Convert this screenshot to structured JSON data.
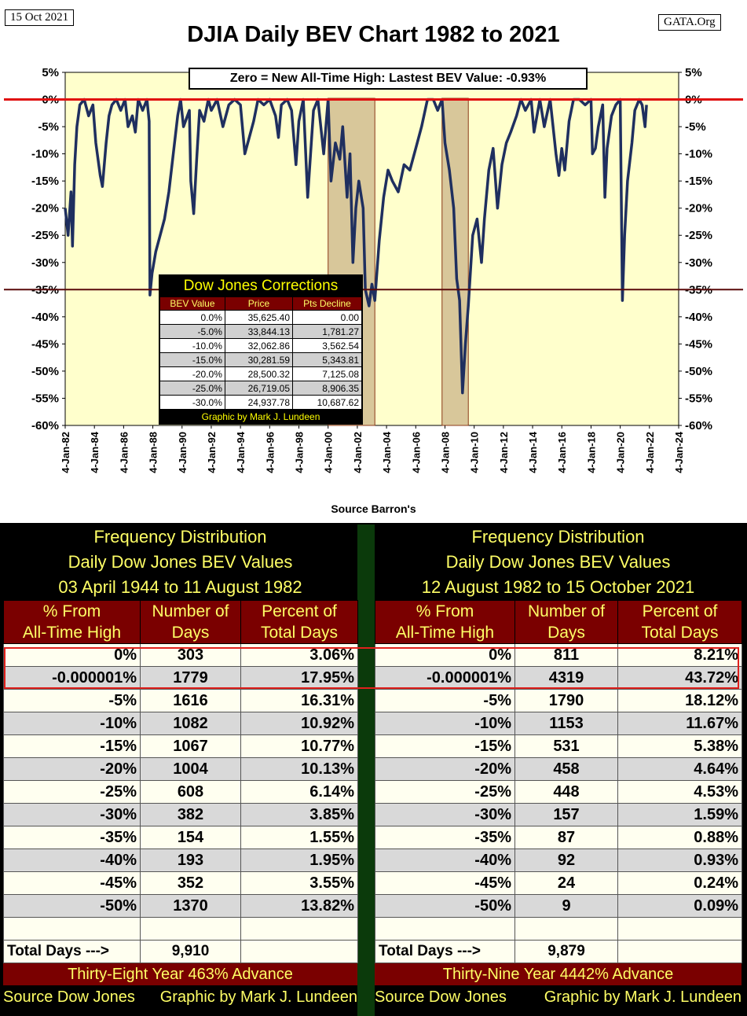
{
  "header": {
    "date_stamp": "15 Oct 2021",
    "site_stamp": "GATA.Org",
    "title": "DJIA Daily BEV Chart 1982 to 2021",
    "banner": "Zero = New All-Time High: Lastest BEV Value: -0.93%",
    "source": "Source Barron's"
  },
  "chart_data": {
    "type": "area",
    "title": "DJIA Daily BEV Chart 1982 to 2021",
    "xlabel": "",
    "ylabel": "",
    "ylim": [
      -60,
      5
    ],
    "y_ticks": [
      "5%",
      "0%",
      "-5%",
      "-10%",
      "-15%",
      "-20%",
      "-25%",
      "-30%",
      "-35%",
      "-40%",
      "-45%",
      "-50%",
      "-55%",
      "-60%"
    ],
    "x_ticks": [
      "4-Jan-82",
      "4-Jan-84",
      "4-Jan-86",
      "4-Jan-88",
      "4-Jan-90",
      "4-Jan-92",
      "4-Jan-94",
      "4-Jan-96",
      "4-Jan-98",
      "4-Jan-00",
      "4-Jan-02",
      "4-Jan-04",
      "4-Jan-06",
      "4-Jan-08",
      "4-Jan-10",
      "4-Jan-12",
      "4-Jan-14",
      "4-Jan-16",
      "4-Jan-18",
      "4-Jan-20",
      "4-Jan-22",
      "4-Jan-24"
    ],
    "x_range": [
      1982.0,
      2024.0
    ],
    "reference_lines": [
      {
        "y": 0,
        "color": "#e01010"
      },
      {
        "y": -35,
        "color": "#5a0a0a"
      }
    ],
    "shaded_periods": [
      [
        2000.0,
        2003.2
      ],
      [
        2007.8,
        2009.6
      ]
    ],
    "colors": {
      "plot_bg": "#ffffcc",
      "series": "#1f2f5f",
      "shade": "#d8c79a"
    },
    "series": [
      {
        "points": [
          [
            1982.0,
            -20
          ],
          [
            1982.2,
            -25
          ],
          [
            1982.4,
            -17
          ],
          [
            1982.5,
            -27
          ],
          [
            1982.65,
            -12
          ],
          [
            1982.8,
            -5
          ],
          [
            1983.0,
            -1
          ],
          [
            1983.3,
            0
          ],
          [
            1983.6,
            -3
          ],
          [
            1983.9,
            -1
          ],
          [
            1984.1,
            -8
          ],
          [
            1984.4,
            -14
          ],
          [
            1984.55,
            -16
          ],
          [
            1984.8,
            -8
          ],
          [
            1985.0,
            -3
          ],
          [
            1985.2,
            -1
          ],
          [
            1985.5,
            0
          ],
          [
            1985.8,
            -2
          ],
          [
            1986.1,
            0
          ],
          [
            1986.3,
            -5
          ],
          [
            1986.6,
            -3
          ],
          [
            1986.8,
            -6
          ],
          [
            1987.0,
            0
          ],
          [
            1987.3,
            -2
          ],
          [
            1987.6,
            0
          ],
          [
            1987.75,
            -4
          ],
          [
            1987.8,
            -36
          ],
          [
            1987.95,
            -32
          ],
          [
            1988.2,
            -28
          ],
          [
            1988.5,
            -25
          ],
          [
            1988.8,
            -22
          ],
          [
            1989.1,
            -17
          ],
          [
            1989.4,
            -10
          ],
          [
            1989.7,
            -3
          ],
          [
            1989.9,
            0
          ],
          [
            1990.1,
            -5
          ],
          [
            1990.5,
            -2
          ],
          [
            1990.6,
            -15
          ],
          [
            1990.8,
            -21
          ],
          [
            1991.0,
            -11
          ],
          [
            1991.2,
            -2
          ],
          [
            1991.5,
            -4
          ],
          [
            1991.8,
            0
          ],
          [
            1992.0,
            -2
          ],
          [
            1992.4,
            0
          ],
          [
            1992.8,
            -5
          ],
          [
            1993.2,
            -1
          ],
          [
            1993.6,
            0
          ],
          [
            1994.0,
            -1
          ],
          [
            1994.3,
            -10
          ],
          [
            1994.6,
            -7
          ],
          [
            1994.9,
            -4
          ],
          [
            1995.2,
            0
          ],
          [
            1995.6,
            -1
          ],
          [
            1996.0,
            0
          ],
          [
            1996.4,
            -3
          ],
          [
            1996.6,
            -7
          ],
          [
            1996.8,
            -1
          ],
          [
            1997.2,
            0
          ],
          [
            1997.5,
            -2
          ],
          [
            1997.8,
            -12
          ],
          [
            1998.0,
            -4
          ],
          [
            1998.3,
            0
          ],
          [
            1998.6,
            -18
          ],
          [
            1998.8,
            -10
          ],
          [
            1999.0,
            -2
          ],
          [
            1999.3,
            0
          ],
          [
            1999.7,
            -10
          ],
          [
            2000.0,
            0
          ],
          [
            2000.2,
            -15
          ],
          [
            2000.5,
            -8
          ],
          [
            2000.8,
            -11
          ],
          [
            2001.0,
            -5
          ],
          [
            2001.3,
            -18
          ],
          [
            2001.5,
            -10
          ],
          [
            2001.7,
            -30
          ],
          [
            2001.9,
            -20
          ],
          [
            2002.1,
            -15
          ],
          [
            2002.4,
            -20
          ],
          [
            2002.55,
            -35
          ],
          [
            2002.8,
            -38
          ],
          [
            2003.0,
            -34
          ],
          [
            2003.2,
            -37
          ],
          [
            2003.5,
            -26
          ],
          [
            2003.8,
            -18
          ],
          [
            2004.1,
            -13
          ],
          [
            2004.4,
            -15
          ],
          [
            2004.8,
            -17
          ],
          [
            2005.2,
            -12
          ],
          [
            2005.6,
            -13
          ],
          [
            2006.0,
            -9
          ],
          [
            2006.4,
            -5
          ],
          [
            2006.8,
            0
          ],
          [
            2007.2,
            0
          ],
          [
            2007.5,
            -2
          ],
          [
            2007.8,
            0
          ],
          [
            2008.0,
            -8
          ],
          [
            2008.3,
            -13
          ],
          [
            2008.6,
            -20
          ],
          [
            2008.8,
            -33
          ],
          [
            2009.0,
            -37
          ],
          [
            2009.2,
            -54
          ],
          [
            2009.4,
            -45
          ],
          [
            2009.6,
            -38
          ],
          [
            2009.9,
            -25
          ],
          [
            2010.2,
            -22
          ],
          [
            2010.5,
            -30
          ],
          [
            2010.7,
            -22
          ],
          [
            2011.0,
            -13
          ],
          [
            2011.3,
            -9
          ],
          [
            2011.6,
            -20
          ],
          [
            2011.9,
            -12
          ],
          [
            2012.2,
            -8
          ],
          [
            2012.5,
            -6
          ],
          [
            2012.9,
            -3
          ],
          [
            2013.2,
            0
          ],
          [
            2013.5,
            -2
          ],
          [
            2013.9,
            0
          ],
          [
            2014.1,
            -6
          ],
          [
            2014.5,
            0
          ],
          [
            2014.8,
            -5
          ],
          [
            2015.2,
            0
          ],
          [
            2015.6,
            -10
          ],
          [
            2015.8,
            -14
          ],
          [
            2016.0,
            -9
          ],
          [
            2016.2,
            -13
          ],
          [
            2016.5,
            -4
          ],
          [
            2016.8,
            0
          ],
          [
            2017.2,
            0
          ],
          [
            2017.6,
            -1
          ],
          [
            2018.0,
            0
          ],
          [
            2018.1,
            -10
          ],
          [
            2018.3,
            -9
          ],
          [
            2018.5,
            -5
          ],
          [
            2018.8,
            -1
          ],
          [
            2018.95,
            -18
          ],
          [
            2019.1,
            -9
          ],
          [
            2019.4,
            -3
          ],
          [
            2019.7,
            -1
          ],
          [
            2020.0,
            0
          ],
          [
            2020.15,
            -37
          ],
          [
            2020.3,
            -25
          ],
          [
            2020.5,
            -15
          ],
          [
            2020.8,
            -8
          ],
          [
            2021.0,
            -2
          ],
          [
            2021.3,
            0
          ],
          [
            2021.5,
            -1
          ],
          [
            2021.7,
            -5
          ],
          [
            2021.8,
            -1
          ]
        ]
      }
    ]
  },
  "corrections": {
    "title": "Dow Jones Corrections",
    "headers": [
      "BEV Value",
      "Price",
      "Pts Decline"
    ],
    "rows": [
      [
        "0.0%",
        "35,625.40",
        "0.00"
      ],
      [
        "-5.0%",
        "33,844.13",
        "1,781.27"
      ],
      [
        "-10.0%",
        "32,062.86",
        "3,562.54"
      ],
      [
        "-15.0%",
        "30,281.59",
        "5,343.81"
      ],
      [
        "-20.0%",
        "28,500.32",
        "7,125.08"
      ],
      [
        "-25.0%",
        "26,719.05",
        "8,906.35"
      ],
      [
        "-30.0%",
        "24,937.78",
        "10,687.62"
      ]
    ],
    "credit": "Graphic by Mark J. Lundeen"
  },
  "left_table": {
    "title1": "Frequency Distribution",
    "title2": "Daily Dow Jones BEV Values",
    "title3": "03 April 1944 to 11 August 1982",
    "col1": [
      "% From",
      "All-Time High"
    ],
    "col2": [
      "Number of",
      "Days"
    ],
    "col3": [
      "Percent of",
      "Total Days"
    ],
    "rows": [
      [
        "0%",
        "303",
        "3.06%"
      ],
      [
        "-0.000001%",
        "1779",
        "17.95%"
      ],
      [
        "-5%",
        "1616",
        "16.31%"
      ],
      [
        "-10%",
        "1082",
        "10.92%"
      ],
      [
        "-15%",
        "1067",
        "10.77%"
      ],
      [
        "-20%",
        "1004",
        "10.13%"
      ],
      [
        "-25%",
        "608",
        "6.14%"
      ],
      [
        "-30%",
        "382",
        "3.85%"
      ],
      [
        "-35%",
        "154",
        "1.55%"
      ],
      [
        "-40%",
        "193",
        "1.95%"
      ],
      [
        "-45%",
        "352",
        "3.55%"
      ],
      [
        "-50%",
        "1370",
        "13.82%"
      ]
    ],
    "total_label": "Total Days --->",
    "total_value": "9,910",
    "advance": "Thirty-Eight Year 463% Advance",
    "footer_source": "Source Dow Jones",
    "footer_credit": "Graphic by Mark J. Lundeen"
  },
  "right_table": {
    "title1": "Frequency Distribution",
    "title2": "Daily Dow Jones BEV Values",
    "title3": "12 August 1982 to 15 October 2021",
    "col1": [
      "% From",
      "All-Time High"
    ],
    "col2": [
      "Number of",
      "Days"
    ],
    "col3": [
      "Percent of",
      "Total Days"
    ],
    "rows": [
      [
        "0%",
        "811",
        "8.21%"
      ],
      [
        "-0.000001%",
        "4319",
        "43.72%"
      ],
      [
        "-5%",
        "1790",
        "18.12%"
      ],
      [
        "-10%",
        "1153",
        "11.67%"
      ],
      [
        "-15%",
        "531",
        "5.38%"
      ],
      [
        "-20%",
        "458",
        "4.64%"
      ],
      [
        "-25%",
        "448",
        "4.53%"
      ],
      [
        "-30%",
        "157",
        "1.59%"
      ],
      [
        "-35%",
        "87",
        "0.88%"
      ],
      [
        "-40%",
        "92",
        "0.93%"
      ],
      [
        "-45%",
        "24",
        "0.24%"
      ],
      [
        "-50%",
        "9",
        "0.09%"
      ]
    ],
    "total_label": "Total Days --->",
    "total_value": "9,879",
    "advance": "Thirty-Nine Year 4442% Advance",
    "footer_source": "Source Dow Jones",
    "footer_credit": "Graphic by Mark J. Lundeen"
  }
}
